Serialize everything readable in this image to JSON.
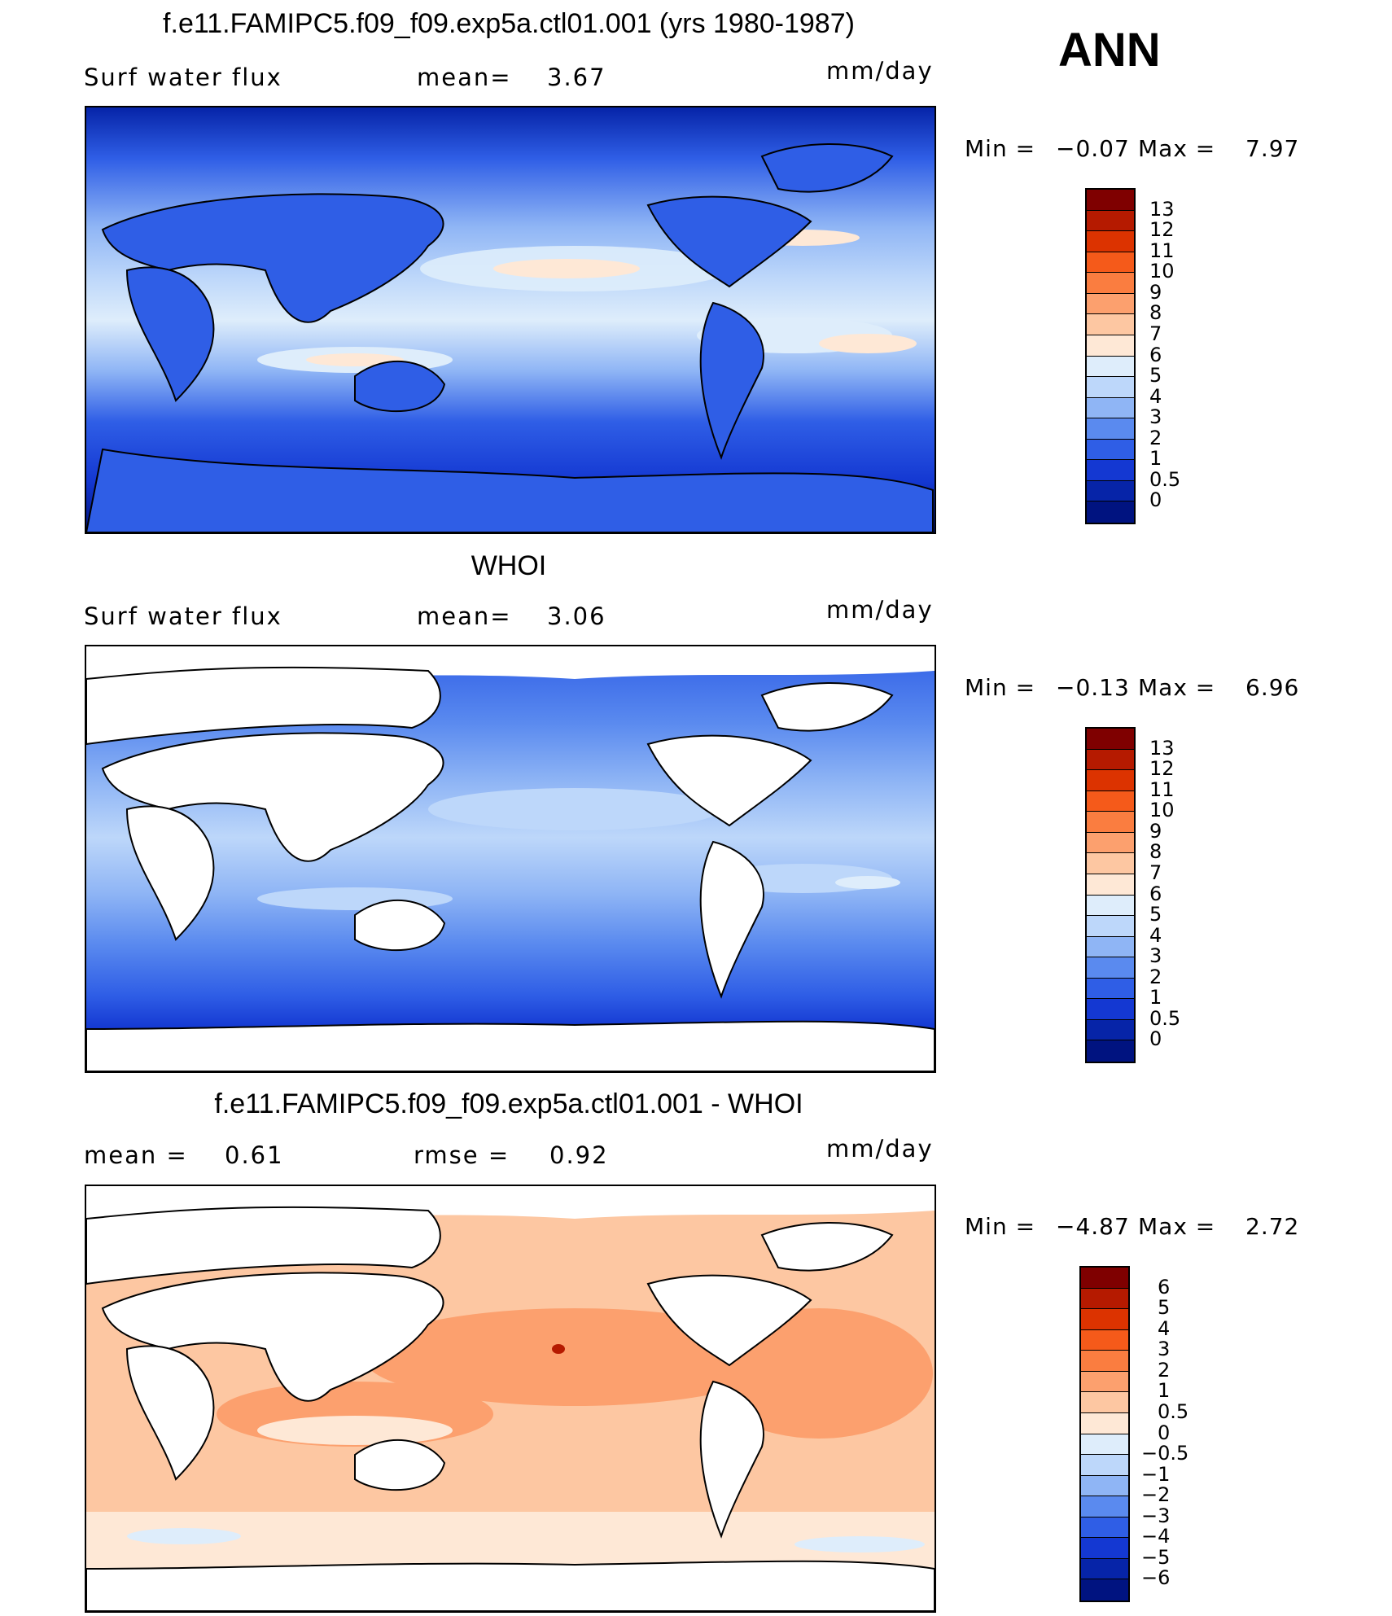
{
  "season": "ANN",
  "panels": [
    {
      "title": "f.e11.FAMIPC5.f09_f09.exp5a.ctl01.001 (yrs 1980-1987)",
      "left_label": "Surf  water  flux",
      "mid_label": "mean=",
      "mid_value": "3.67",
      "units": "mm/day",
      "min_label": "Min  =",
      "min_value": "−0.07",
      "max_label": "Max  =",
      "max_value": "7.97",
      "ocean_only": false
    },
    {
      "title": "WHOI",
      "left_label": "Surf  water  flux",
      "mid_label": "mean=",
      "mid_value": "3.06",
      "units": "mm/day",
      "min_label": "Min  =",
      "min_value": "−0.13",
      "max_label": "Max  =",
      "max_value": "6.96",
      "ocean_only": true
    },
    {
      "title": "f.e11.FAMIPC5.f09_f09.exp5a.ctl01.001 - WHOI",
      "left_label": "mean  =",
      "left_value": "0.61",
      "mid_label": "rmse  =",
      "mid_value": "0.92",
      "units": "mm/day",
      "min_label": "Min  =",
      "min_value": "−4.87",
      "max_label": "Max  =",
      "max_value": "2.72",
      "ocean_only": true
    }
  ],
  "colorbars": {
    "field": {
      "levels": [
        "13",
        "12",
        "11",
        "10",
        "9",
        "8",
        "7",
        "6",
        "5",
        "4",
        "3",
        "2",
        "1",
        "0.5",
        "0"
      ],
      "colors": [
        "#7f0000",
        "#b51a00",
        "#dc3300",
        "#f55a1a",
        "#fa7d40",
        "#fca06e",
        "#fdc7a2",
        "#fee8d6",
        "#deedfb",
        "#bdd7fa",
        "#8fb5f5",
        "#5a8aef",
        "#2f5ee6",
        "#1438d2",
        "#0624a8",
        "#001380"
      ]
    },
    "diff": {
      "levels": [
        "6",
        "5",
        "4",
        "3",
        "2",
        "1",
        "0.5",
        "0",
        "−0.5",
        "−1",
        "−2",
        "−3",
        "−4",
        "−5",
        "−6"
      ],
      "colors": [
        "#7f0000",
        "#b51a00",
        "#dc3300",
        "#f55a1a",
        "#fa7d40",
        "#fca06e",
        "#fdc7a2",
        "#fee8d6",
        "#deedfb",
        "#bdd7fa",
        "#8fb5f5",
        "#5a8aef",
        "#2f5ee6",
        "#1438d2",
        "#0624a8",
        "#001380"
      ]
    }
  }
}
